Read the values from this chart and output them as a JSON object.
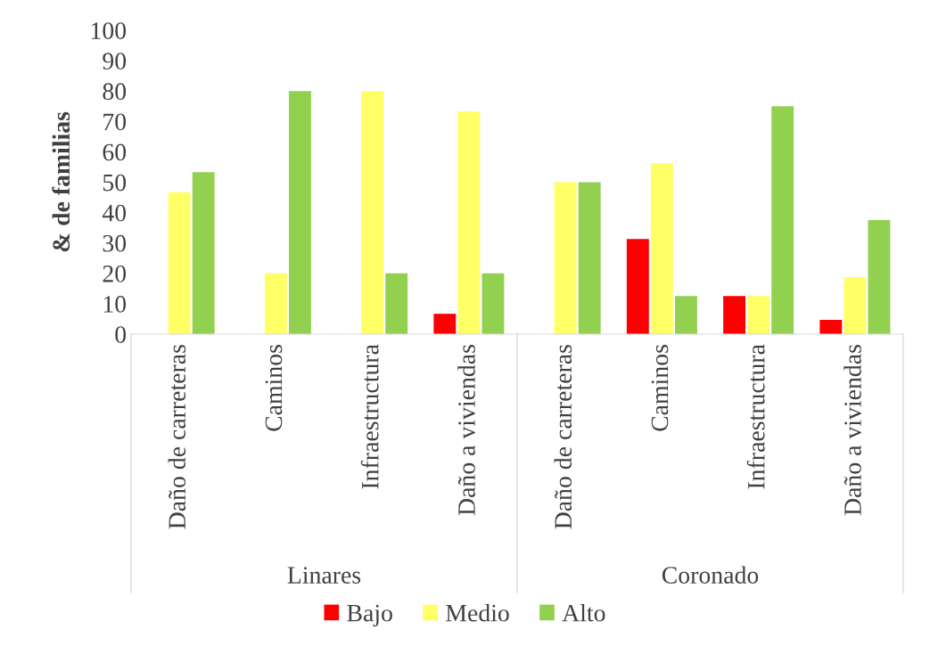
{
  "chart_data": {
    "type": "bar",
    "ylabel": "& de familias",
    "categories": [
      "Daño de carreteras",
      "Caminos",
      "Infraestructura",
      "Daño a viviendas",
      "Daño de carreteras",
      "Caminos",
      "Infraestructura",
      "Daño a viviendas"
    ],
    "series": [
      {
        "name": "Bajo",
        "color": "#ff0000",
        "values": [
          0,
          0,
          0,
          6.7,
          0,
          31.3,
          12.5,
          4.7
        ]
      },
      {
        "name": "Medio",
        "color": "#ffff66",
        "values": [
          46.7,
          20,
          80,
          73.3,
          50,
          56.3,
          12.5,
          18.8
        ]
      },
      {
        "name": "Alto",
        "color": "#92d050",
        "values": [
          53.3,
          80,
          20,
          20,
          50,
          12.5,
          75,
          37.5
        ]
      }
    ],
    "annotations": [
      "Linares",
      "Coronado"
    ],
    "ylim": [
      0,
      100
    ],
    "yticks": [
      0,
      10,
      20,
      30,
      40,
      50,
      60,
      70,
      80,
      90,
      100
    ],
    "grid": false,
    "legend": "bottom"
  }
}
